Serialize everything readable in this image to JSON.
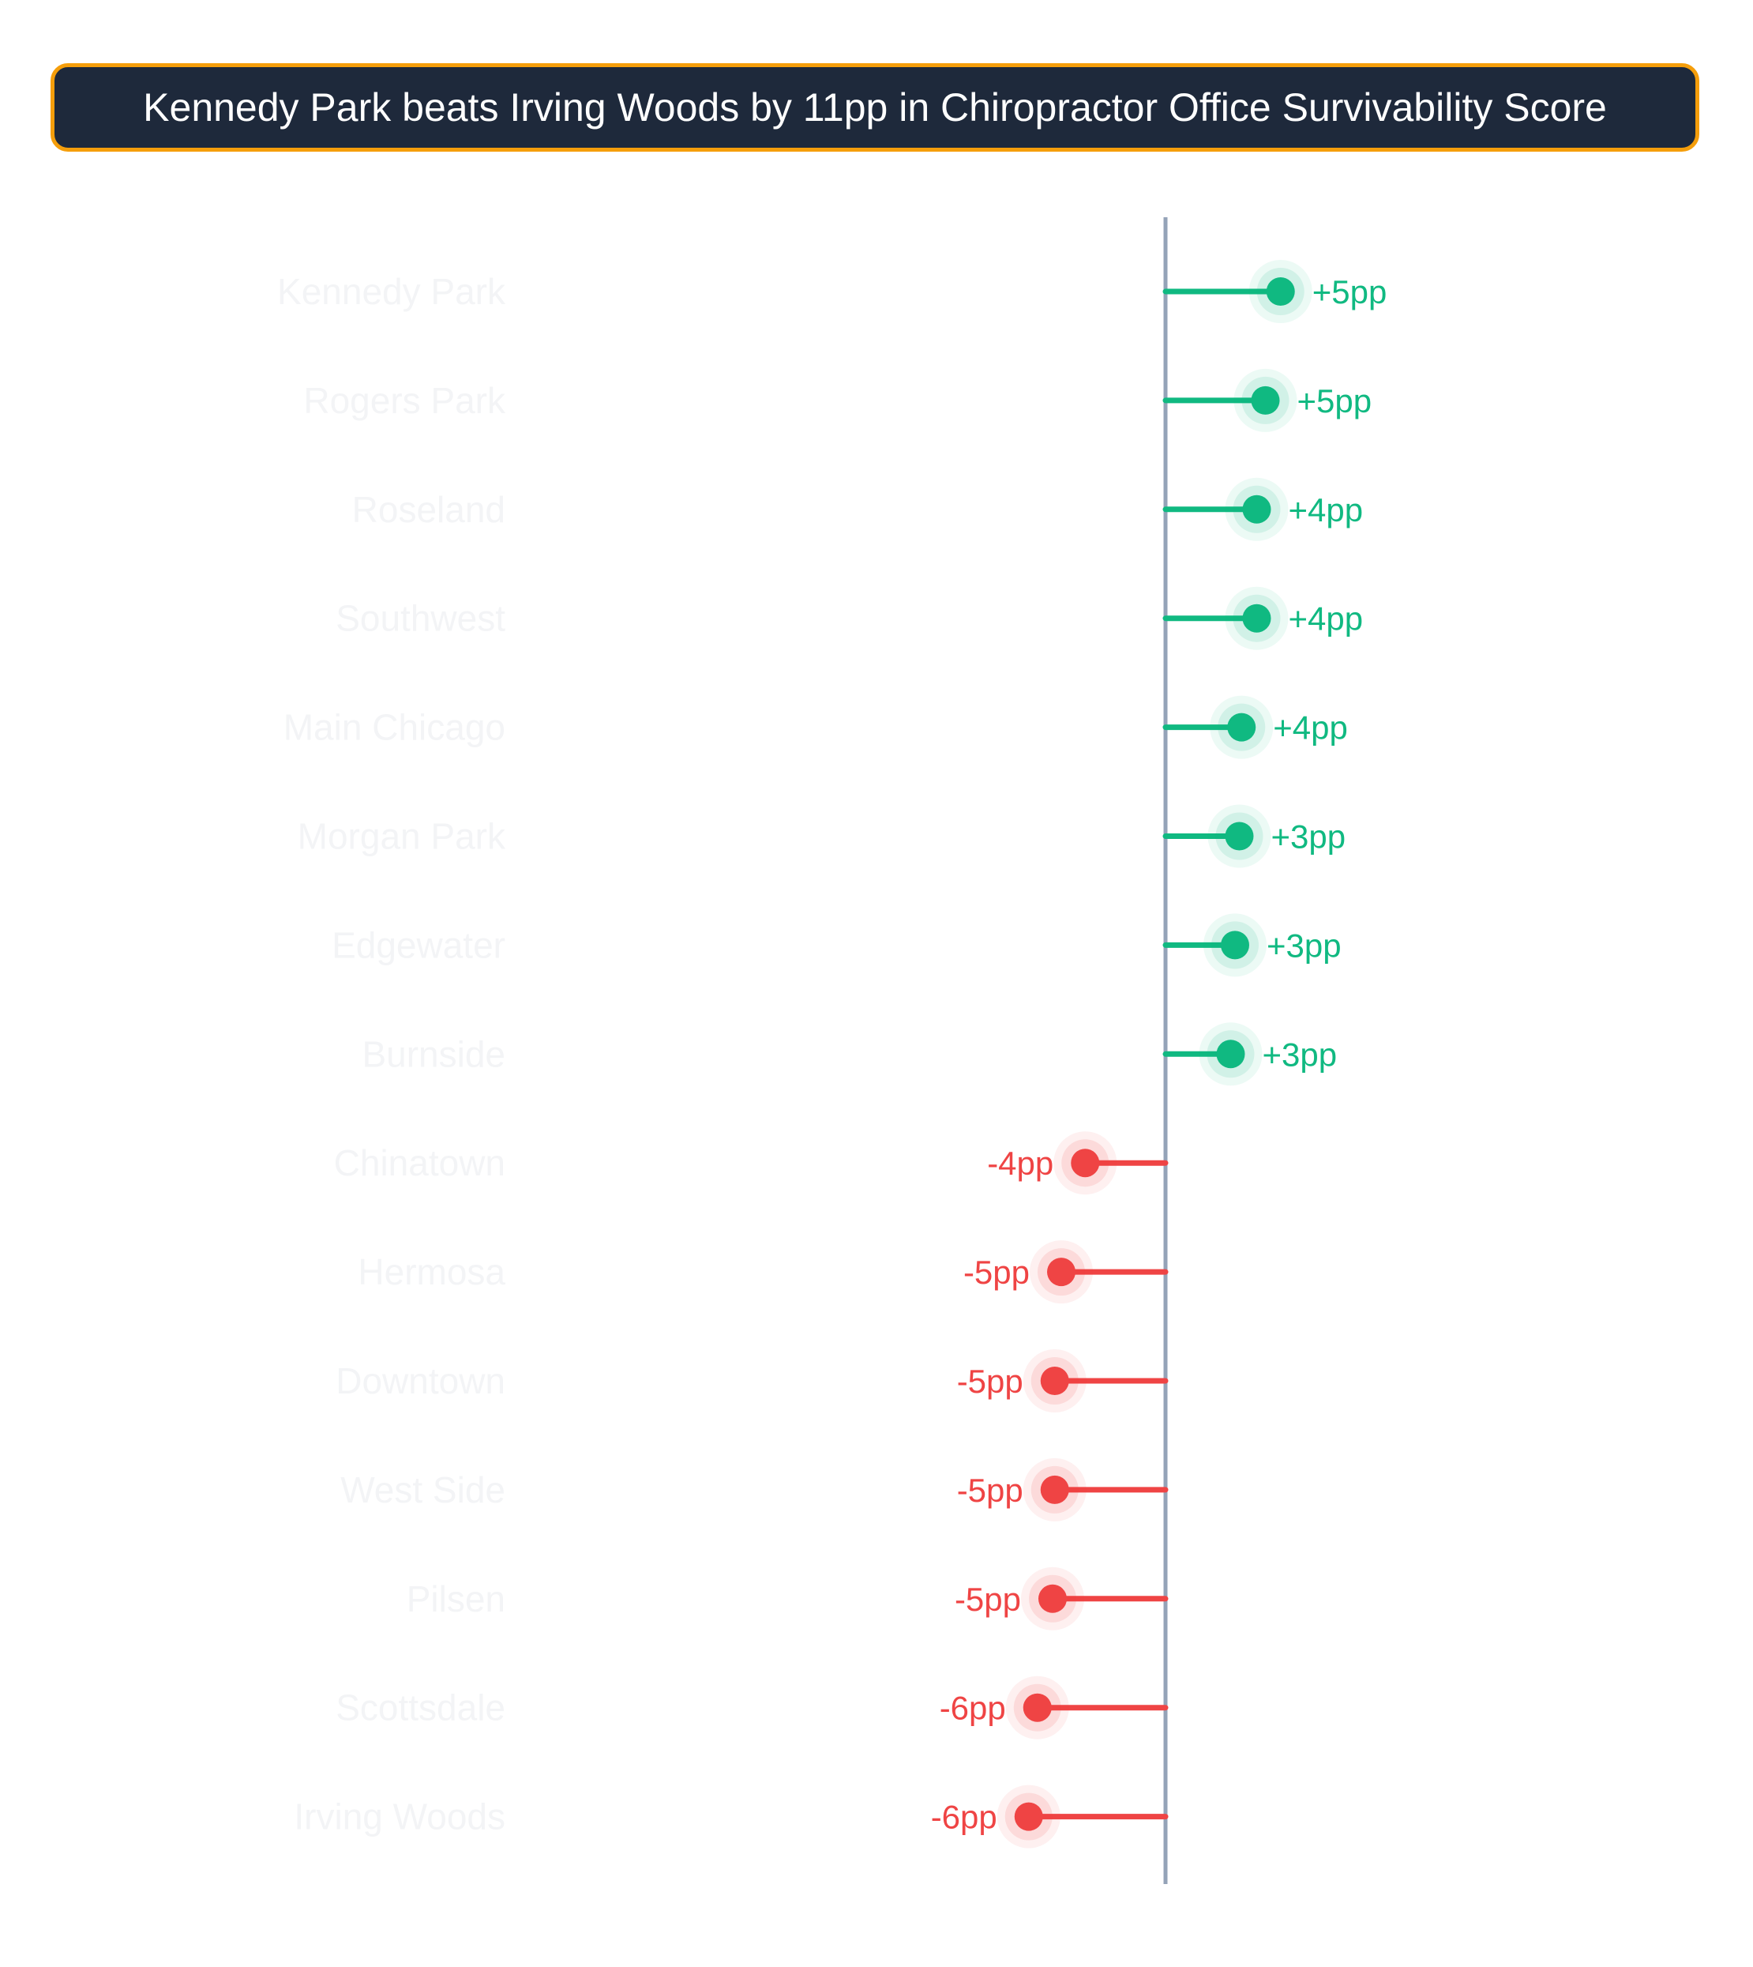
{
  "title": "Kennedy Park beats Irving Woods by 11pp in Chiropractor Office Survivability Score",
  "colors": {
    "positive": "#10b981",
    "negative": "#ef4444",
    "axis": "#94a3b8",
    "category_label": "#f3f4f6",
    "title_bg": "#1e293b",
    "title_border": "#f59e0b"
  },
  "chart_data": {
    "type": "lollipop",
    "title": "Kennedy Park beats Irving Woods by 11pp in Chiropractor Office Survivability Score",
    "xlabel": "",
    "ylabel": "",
    "xlim": [
      -6.5,
      7
    ],
    "grid": false,
    "categories": [
      "Kennedy Park",
      "Rogers Park",
      "Roseland",
      "Southwest",
      "Main Chicago",
      "Morgan Park",
      "Edgewater",
      "Burnside",
      "Chinatown",
      "Hermosa",
      "Downtown",
      "West Side",
      "Pilsen",
      "Scottsdale",
      "Irving Woods"
    ],
    "values": [
      5.3,
      4.6,
      4.2,
      4.2,
      3.5,
      3.4,
      3.2,
      3.0,
      -3.7,
      -4.8,
      -5.1,
      -5.1,
      -5.2,
      -5.9,
      -6.3
    ],
    "value_labels": [
      "+5pp",
      "+5pp",
      "+4pp",
      "+4pp",
      "+4pp",
      "+3pp",
      "+3pp",
      "+3pp",
      "-4pp",
      "-5pp",
      "-5pp",
      "-5pp",
      "-5pp",
      "-6pp",
      "-6pp"
    ]
  }
}
